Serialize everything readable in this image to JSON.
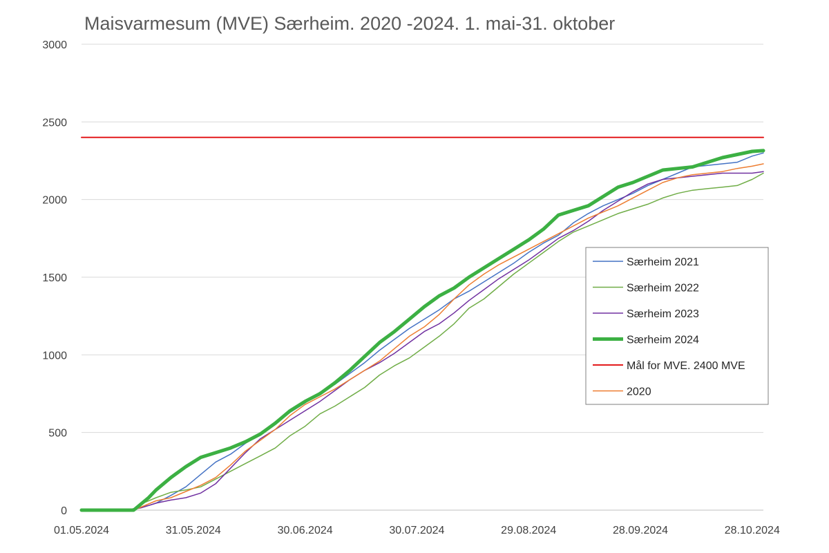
{
  "chart_data": {
    "type": "line",
    "title": "Maisvarmesum (MVE) Særheim. 2020 -2024. 1. mai-31. oktober",
    "xlabel": "",
    "ylabel": "",
    "x_range": [
      0,
      183
    ],
    "ylim": [
      0,
      3000
    ],
    "y_ticks": [
      0,
      500,
      1000,
      1500,
      2000,
      2500,
      3000
    ],
    "x_ticks": [
      {
        "day": 0,
        "label": "01.05.2024"
      },
      {
        "day": 30,
        "label": "31.05.2024"
      },
      {
        "day": 60,
        "label": "30.06.2024"
      },
      {
        "day": 90,
        "label": "30.07.2024"
      },
      {
        "day": 120,
        "label": "29.08.2024"
      },
      {
        "day": 150,
        "label": "28.09.2024"
      },
      {
        "day": 180,
        "label": "28.10.2024"
      }
    ],
    "grid": "horizontal",
    "legend_position": "right",
    "series": [
      {
        "name": "Særheim 2021",
        "color": "#4472C4",
        "width": 1.5,
        "x": [
          0,
          12,
          14,
          16,
          18,
          20,
          24,
          28,
          32,
          36,
          40,
          44,
          48,
          52,
          56,
          60,
          64,
          68,
          72,
          76,
          80,
          84,
          88,
          92,
          96,
          100,
          104,
          108,
          112,
          116,
          120,
          124,
          128,
          132,
          136,
          140,
          144,
          148,
          152,
          156,
          160,
          164,
          168,
          172,
          176,
          180,
          183
        ],
        "y": [
          0,
          0,
          10,
          20,
          30,
          45,
          95,
          150,
          230,
          310,
          360,
          430,
          490,
          560,
          630,
          690,
          760,
          810,
          880,
          950,
          1030,
          1100,
          1170,
          1230,
          1290,
          1360,
          1410,
          1470,
          1530,
          1590,
          1660,
          1720,
          1770,
          1850,
          1910,
          1960,
          2000,
          2040,
          2090,
          2130,
          2170,
          2210,
          2220,
          2230,
          2240,
          2280,
          2300
        ]
      },
      {
        "name": "Særheim 2022",
        "color": "#70AD47",
        "width": 1.5,
        "x": [
          0,
          12,
          14,
          16,
          18,
          20,
          24,
          28,
          32,
          36,
          40,
          44,
          48,
          52,
          56,
          60,
          64,
          68,
          72,
          76,
          80,
          84,
          88,
          92,
          96,
          100,
          104,
          108,
          112,
          116,
          120,
          124,
          128,
          132,
          136,
          140,
          144,
          148,
          152,
          156,
          160,
          164,
          168,
          172,
          176,
          180,
          183
        ],
        "y": [
          0,
          0,
          10,
          40,
          60,
          80,
          115,
          130,
          150,
          200,
          250,
          300,
          350,
          400,
          480,
          540,
          620,
          670,
          730,
          790,
          870,
          930,
          980,
          1050,
          1120,
          1200,
          1300,
          1360,
          1440,
          1520,
          1590,
          1660,
          1730,
          1790,
          1830,
          1870,
          1910,
          1940,
          1970,
          2010,
          2040,
          2060,
          2070,
          2080,
          2090,
          2130,
          2170
        ]
      },
      {
        "name": "Særheim 2023",
        "color": "#7030A0",
        "width": 1.5,
        "x": [
          0,
          12,
          14,
          16,
          18,
          20,
          24,
          28,
          32,
          36,
          40,
          44,
          48,
          52,
          56,
          60,
          64,
          68,
          72,
          76,
          80,
          84,
          88,
          92,
          96,
          100,
          104,
          108,
          112,
          116,
          120,
          124,
          128,
          132,
          136,
          140,
          144,
          148,
          152,
          156,
          160,
          164,
          168,
          172,
          176,
          180,
          183
        ],
        "y": [
          0,
          0,
          5,
          15,
          30,
          45,
          65,
          80,
          110,
          170,
          270,
          370,
          460,
          520,
          580,
          640,
          700,
          770,
          840,
          900,
          950,
          1010,
          1080,
          1150,
          1200,
          1270,
          1350,
          1420,
          1490,
          1550,
          1610,
          1680,
          1750,
          1800,
          1860,
          1930,
          1990,
          2050,
          2100,
          2130,
          2140,
          2150,
          2160,
          2170,
          2170,
          2170,
          2180
        ]
      },
      {
        "name": "Særheim 2024",
        "color": "#3CB043",
        "width": 5,
        "x": [
          0,
          14,
          16,
          18,
          20,
          24,
          28,
          32,
          36,
          40,
          44,
          48,
          52,
          56,
          60,
          64,
          68,
          72,
          76,
          80,
          84,
          88,
          92,
          96,
          100,
          104,
          108,
          112,
          116,
          120,
          124,
          128,
          132,
          136,
          140,
          144,
          148,
          152,
          156,
          160,
          164,
          168,
          172,
          176,
          180,
          183
        ],
        "y": [
          0,
          0,
          40,
          80,
          130,
          210,
          280,
          340,
          370,
          400,
          440,
          490,
          560,
          640,
          700,
          750,
          820,
          900,
          990,
          1080,
          1150,
          1230,
          1310,
          1380,
          1430,
          1500,
          1560,
          1620,
          1680,
          1740,
          1810,
          1900,
          1930,
          1960,
          2020,
          2080,
          2110,
          2150,
          2190,
          2200,
          2210,
          2240,
          2270,
          2290,
          2310,
          2315
        ]
      },
      {
        "name": "Mål for MVE. 2400 MVE",
        "color": "#E31A1C",
        "width": 2,
        "x": [
          0,
          183
        ],
        "y": [
          2400,
          2400
        ]
      },
      {
        "name": "2020",
        "color": "#ED7D31",
        "width": 1.5,
        "x": [
          0,
          14,
          16,
          18,
          20,
          24,
          28,
          32,
          36,
          40,
          44,
          48,
          52,
          56,
          60,
          64,
          68,
          72,
          76,
          80,
          84,
          88,
          92,
          96,
          100,
          104,
          108,
          112,
          116,
          120,
          124,
          128,
          132,
          136,
          140,
          144,
          148,
          152,
          156,
          160,
          164,
          168,
          172,
          176,
          180,
          183
        ],
        "y": [
          0,
          0,
          20,
          40,
          60,
          80,
          120,
          160,
          210,
          290,
          380,
          450,
          520,
          610,
          680,
          730,
          780,
          840,
          900,
          960,
          1040,
          1120,
          1180,
          1260,
          1360,
          1450,
          1520,
          1580,
          1630,
          1680,
          1730,
          1780,
          1830,
          1880,
          1920,
          1960,
          2010,
          2060,
          2110,
          2140,
          2160,
          2170,
          2180,
          2200,
          2215,
          2230
        ]
      }
    ]
  }
}
